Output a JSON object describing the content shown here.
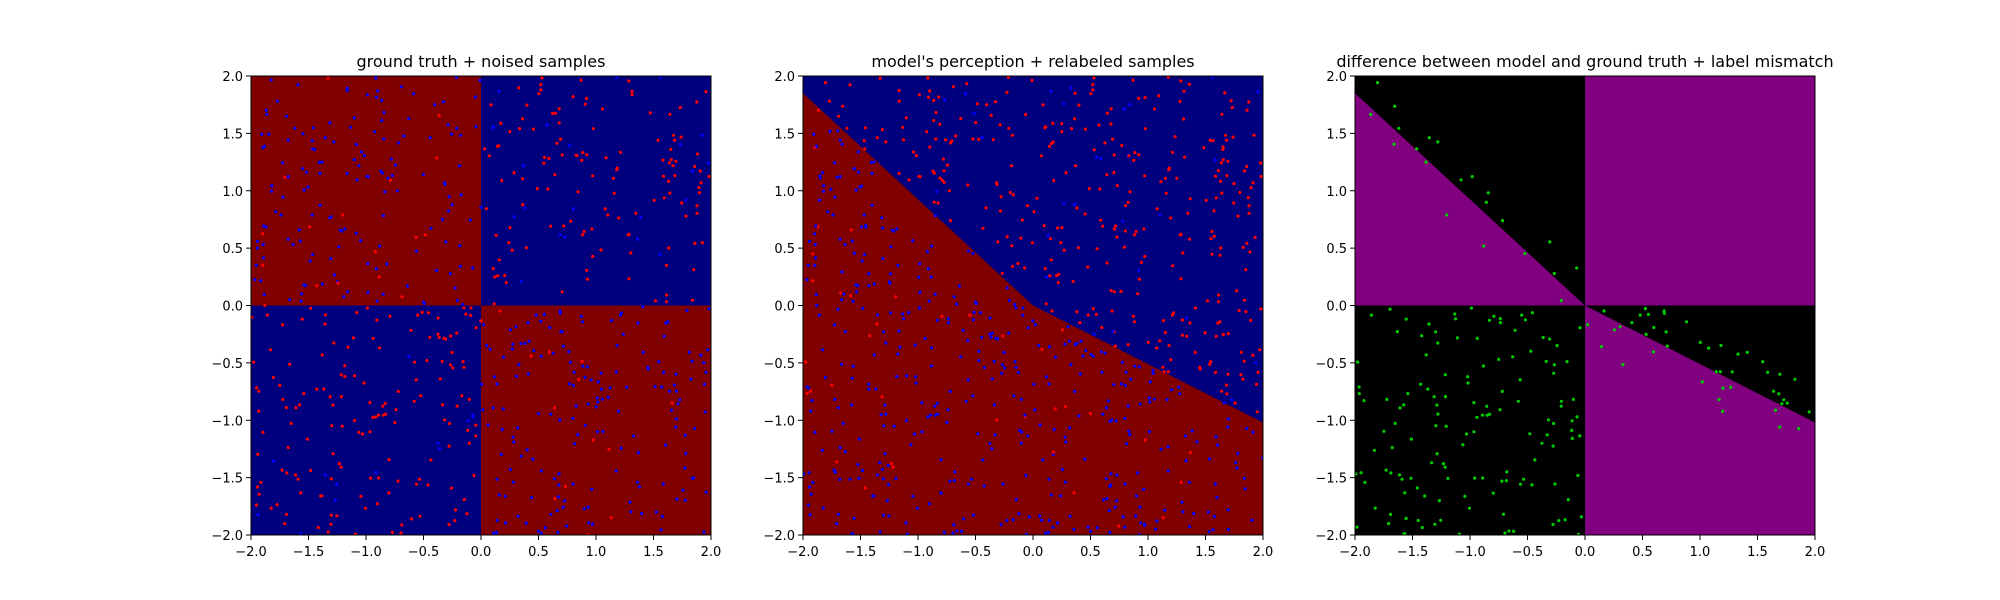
{
  "figure": {
    "background": "#ffffff"
  },
  "chart_data": [
    {
      "type": "scatter",
      "title": "ground truth + noised samples",
      "xlabel": "",
      "ylabel": "",
      "xlim": [
        -2.0,
        2.0
      ],
      "ylim": [
        -2.0,
        2.0
      ],
      "xticks": [
        "−2.0",
        "−1.5",
        "−1.0",
        "−0.5",
        "0.0",
        "0.5",
        "1.0",
        "1.5",
        "2.0"
      ],
      "yticks": [
        "−2.0",
        "−1.5",
        "−1.0",
        "−0.5",
        "0.0",
        "0.5",
        "1.0",
        "1.5",
        "2.0"
      ],
      "grid": false,
      "background_regions": "quadrants: top-left and bottom-right dark red, top-right and bottom-left dark blue",
      "region_colors": {
        "class_a": "#800000",
        "class_b": "#00007f"
      },
      "series": [
        {
          "color": "#ff0000",
          "region": "x>0,y>0 and x<0,y<0",
          "approx_count": 310
        },
        {
          "color": "#0000ff",
          "region": "x<0,y>0 and x>0,y<0",
          "approx_count": 360
        }
      ]
    },
    {
      "type": "scatter",
      "title": "model's perception + relabeled samples",
      "xlabel": "",
      "ylabel": "",
      "xlim": [
        -2.0,
        2.0
      ],
      "ylim": [
        -2.0,
        2.0
      ],
      "xticks": [
        "−2.0",
        "−1.5",
        "−1.0",
        "−0.5",
        "0.0",
        "0.5",
        "1.0",
        "1.5",
        "2.0"
      ],
      "yticks": [
        "−2.0",
        "−1.5",
        "−1.0",
        "−0.5",
        "0.0",
        "0.5",
        "1.0",
        "1.5",
        "2.0"
      ],
      "grid": false,
      "background_regions": "blue above a bent boundary through (-2,1.85), (0,0), (2,-1.02); red below",
      "boundary": [
        [
          -2.0,
          1.85
        ],
        [
          0.0,
          0.0
        ],
        [
          2.0,
          -1.02
        ]
      ],
      "region_colors": {
        "class_a": "#800000",
        "class_b": "#00007f"
      },
      "series": [
        {
          "color": "#ff0000",
          "region": "above boundary",
          "approx_count": 380
        },
        {
          "color": "#0000ff",
          "region": "below boundary",
          "approx_count": 480
        }
      ]
    },
    {
      "type": "scatter",
      "title": "difference between model and ground truth + label mismatch",
      "xlabel": "",
      "ylabel": "",
      "xlim": [
        -2.0,
        2.0
      ],
      "ylim": [
        -2.0,
        2.0
      ],
      "xticks": [
        "−2.0",
        "−1.5",
        "−1.0",
        "−0.5",
        "0.0",
        "0.5",
        "1.0",
        "1.5",
        "2.0"
      ],
      "yticks": [
        "−2.0",
        "−1.5",
        "−1.0",
        "−0.5",
        "0.0",
        "0.5",
        "1.0",
        "1.5",
        "2.0"
      ],
      "grid": false,
      "background_regions": "purple where model differs from ground truth, black elsewhere",
      "region_colors": {
        "mismatch": "#800080",
        "match": "#000000"
      },
      "series": [
        {
          "color": "#00cc00",
          "region": "label mismatch samples (mostly x<0,y<0 quadrant and near model boundary)",
          "approx_count": 260
        }
      ]
    }
  ]
}
